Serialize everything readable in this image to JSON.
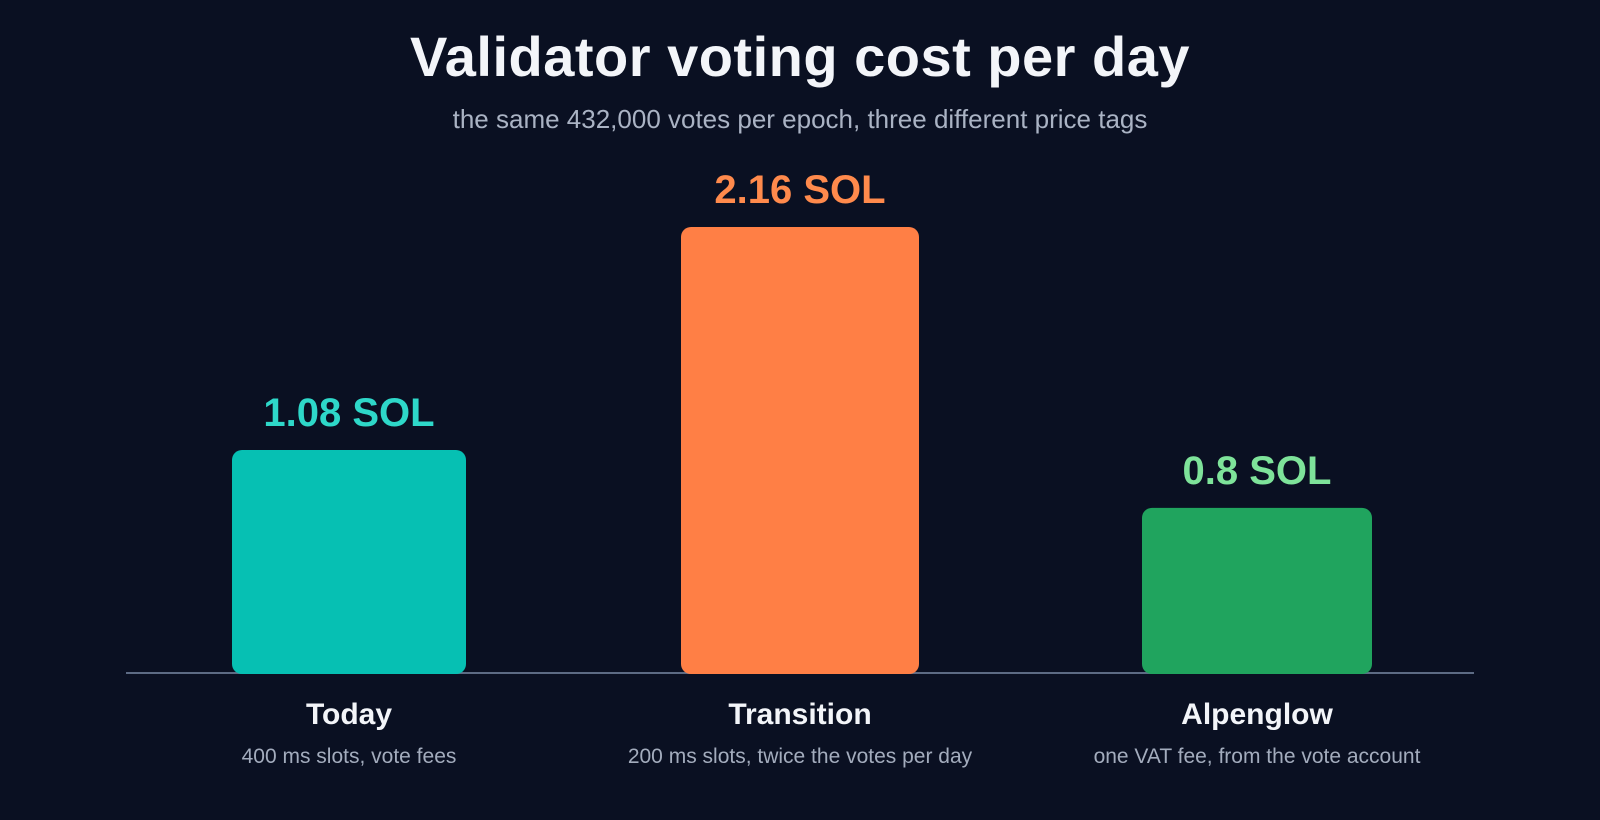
{
  "chart_data": {
    "type": "bar",
    "title": "Validator voting cost per day",
    "subtitle": "the same 432,000 votes per epoch, three different price tags",
    "categories": [
      "Today",
      "Transition",
      "Alpenglow"
    ],
    "notes": [
      "400 ms slots, vote fees",
      "200 ms slots, twice the votes per day",
      "one VAT fee, from the vote account"
    ],
    "values": [
      1.08,
      2.16,
      0.8
    ],
    "value_labels": [
      "1.08 SOL",
      "2.16 SOL",
      "0.8 SOL"
    ],
    "unit": "SOL",
    "colors": [
      "#06c0b3",
      "#ff7f45",
      "#20a45e"
    ],
    "label_colors": [
      "#2ed8c9",
      "#ff8a4c",
      "#7ee39a"
    ],
    "ylim": [
      0,
      2.16
    ],
    "grid": false,
    "legend": "none"
  }
}
